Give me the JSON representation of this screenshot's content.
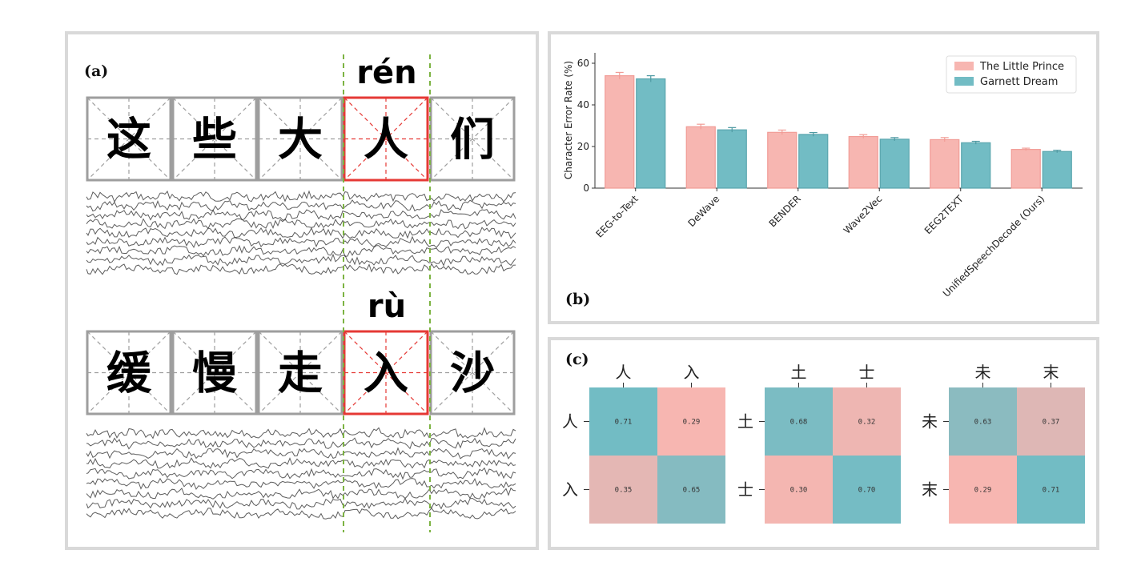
{
  "panel_a": {
    "label": "(a)",
    "row1": {
      "pinyin": "rén",
      "chars": [
        "这",
        "些",
        "大",
        "人",
        "们"
      ],
      "highlight": 3
    },
    "row2": {
      "pinyin": "rù",
      "chars": [
        "缓",
        "慢",
        "走",
        "入",
        "沙"
      ],
      "highlight": 3
    },
    "colors": {
      "highlight": "#e53935",
      "grid": "#9e9e9e",
      "divider": "#7cb342"
    }
  },
  "panel_b": {
    "label": "(b)"
  },
  "panel_c": {
    "label": "(c)"
  },
  "chart_data": [
    {
      "type": "bar",
      "ylabel": "Character Error Rate (%)",
      "ylim": [
        0,
        65
      ],
      "yticks": [
        0,
        20,
        40,
        60
      ],
      "categories": [
        "EEG-to-Text",
        "DeWave",
        "BENDER",
        "Wave2Vec",
        "EEG2TEXT",
        "UnifiedSpeechDecode (Ours)"
      ],
      "series": [
        {
          "name": "The Little Prince",
          "color": "#f7b6b1",
          "values": [
            54.0,
            29.5,
            26.8,
            24.8,
            23.3,
            18.6
          ],
          "errors": [
            1.6,
            1.2,
            1.1,
            0.9,
            1.0,
            0.6
          ]
        },
        {
          "name": "Garnett Dream",
          "color": "#72bcc4",
          "values": [
            52.5,
            28.0,
            25.8,
            23.5,
            21.8,
            17.6
          ],
          "errors": [
            1.5,
            1.1,
            0.9,
            0.8,
            0.7,
            0.6
          ]
        }
      ],
      "legend": "top-right",
      "grid": false
    },
    {
      "type": "heatmap",
      "labels": [
        "人",
        "入"
      ],
      "values": [
        [
          0.71,
          0.29
        ],
        [
          0.35,
          0.65
        ]
      ],
      "display": [
        [
          "0.71",
          "0.29"
        ],
        [
          "0.35",
          "0.65"
        ]
      ]
    },
    {
      "type": "heatmap",
      "labels": [
        "土",
        "士"
      ],
      "values": [
        [
          0.68,
          0.32
        ],
        [
          0.3,
          0.7
        ]
      ],
      "display": [
        [
          "0.68",
          "0.32"
        ],
        [
          "0.30",
          "0.70"
        ]
      ]
    },
    {
      "type": "heatmap",
      "labels": [
        "未",
        "末"
      ],
      "values": [
        [
          0.63,
          0.37
        ],
        [
          0.29,
          0.71
        ]
      ],
      "display": [
        [
          "0.63",
          "0.37"
        ],
        [
          "0.29",
          "0.71"
        ]
      ]
    }
  ]
}
